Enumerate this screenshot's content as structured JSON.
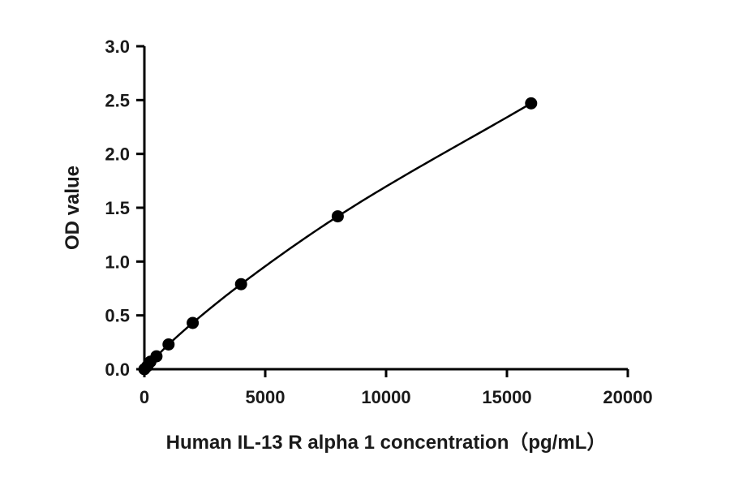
{
  "chart_data": {
    "type": "scatter",
    "title": "",
    "xlabel": "Human IL-13 R alpha 1  concentration（pg/mL）",
    "ylabel": "OD value",
    "xlim": [
      0,
      20000
    ],
    "ylim": [
      0,
      3.0
    ],
    "x_ticks": [
      "0",
      "5000",
      "10000",
      "15000",
      "20000"
    ],
    "y_ticks": [
      "0.0",
      "0.5",
      "1.0",
      "1.5",
      "2.0",
      "2.5",
      "3.0"
    ],
    "x_tick_values": [
      0,
      5000,
      10000,
      15000,
      20000
    ],
    "y_tick_values": [
      0,
      0.5,
      1.0,
      1.5,
      2.0,
      2.5,
      3.0
    ],
    "grid": false,
    "fit_curve": true,
    "series": [
      {
        "x": [
          0,
          125,
          250,
          500,
          1000,
          2000,
          4000,
          8000,
          16000
        ],
        "y": [
          0.0,
          0.03,
          0.07,
          0.12,
          0.23,
          0.43,
          0.79,
          1.42,
          2.47
        ]
      }
    ],
    "colors": {
      "marker": "#000000",
      "curve": "#000000",
      "axis": "#000000"
    }
  }
}
